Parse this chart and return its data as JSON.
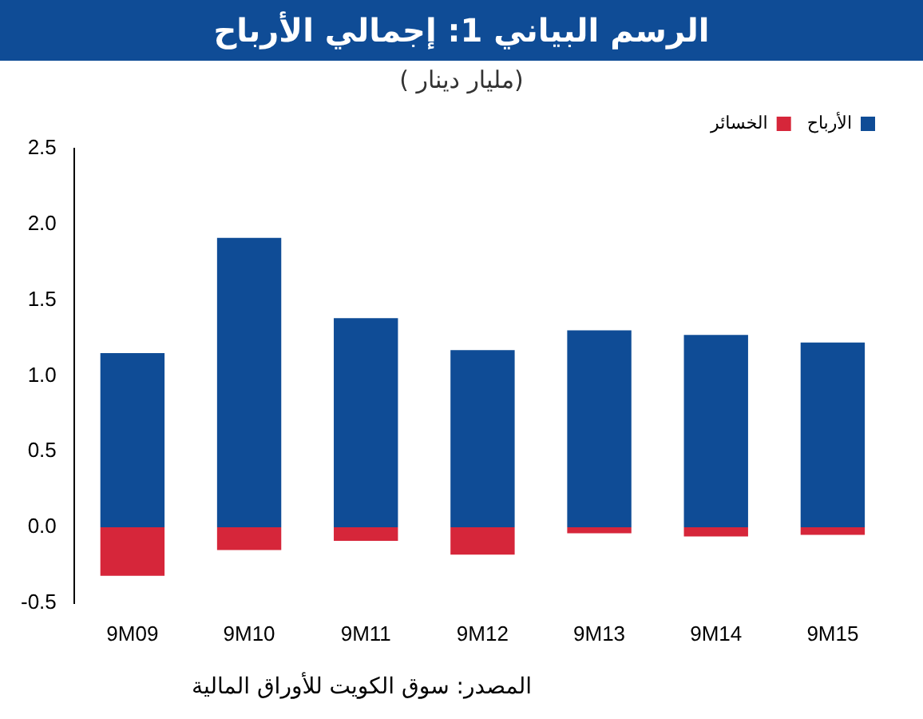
{
  "chart_data": {
    "type": "bar",
    "title": "الرسم البياني 1: إجمالي الأرباح",
    "subtitle": "(مليار دينار )",
    "categories": [
      "9M09",
      "9M10",
      "9M11",
      "9M12",
      "9M13",
      "9M14",
      "9M15"
    ],
    "series": [
      {
        "name": "الأرباح",
        "color": "#0f4c96",
        "values": [
          1.15,
          1.91,
          1.38,
          1.17,
          1.3,
          1.27,
          1.22
        ]
      },
      {
        "name": "الخسائر",
        "color": "#d6263a",
        "values": [
          -0.32,
          -0.15,
          -0.09,
          -0.18,
          -0.04,
          -0.06,
          -0.05
        ]
      }
    ],
    "stacked": true,
    "ylim": [
      -0.5,
      2.5
    ],
    "yticks": [
      -0.5,
      {
        "value": 0,
        "label": "0.0"
      },
      0.5,
      {
        "value": 1,
        "label": "1.0"
      },
      1.5,
      {
        "value": 2,
        "label": "2.0"
      },
      2.5
    ],
    "grid": false,
    "legend": "top right",
    "annotations": [
      "المصدر: سوق الكويت للأوراق المالية"
    ]
  }
}
